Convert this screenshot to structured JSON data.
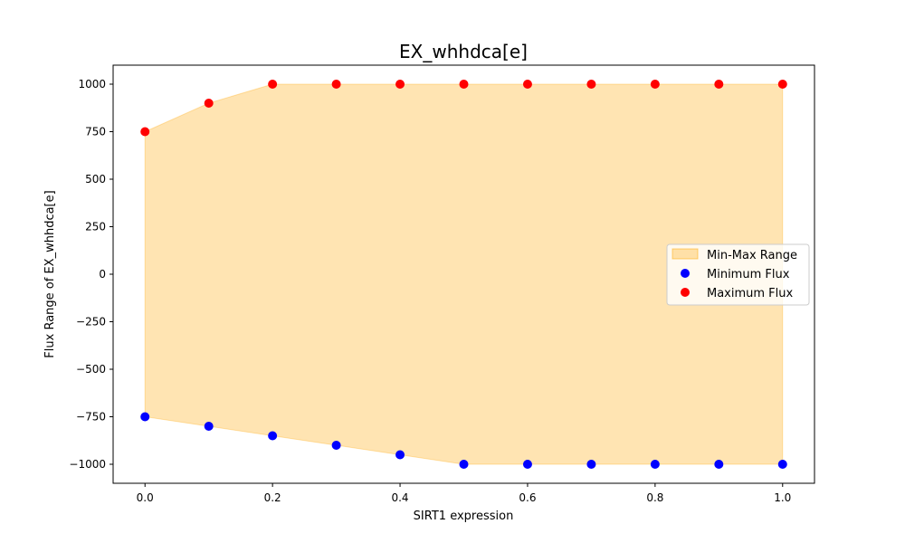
{
  "chart_data": {
    "type": "scatter",
    "title": "EX_whhdca[e]",
    "xlabel": "SIRT1 expression",
    "ylabel": "Flux Range of EX_whhdca[e]",
    "xlim": [
      -0.05,
      1.05
    ],
    "ylim": [
      -1100,
      1100
    ],
    "x_ticks": [
      0.0,
      0.2,
      0.4,
      0.6,
      0.8,
      1.0
    ],
    "x_tick_labels": [
      "0.0",
      "0.2",
      "0.4",
      "0.6",
      "0.8",
      "1.0"
    ],
    "y_ticks": [
      -1000,
      -750,
      -500,
      -250,
      0,
      250,
      500,
      750,
      1000
    ],
    "y_tick_labels": [
      "−1000",
      "−750",
      "−500",
      "−250",
      "0",
      "250",
      "500",
      "750",
      "1000"
    ],
    "x": [
      0.0,
      0.1,
      0.2,
      0.3,
      0.4,
      0.5,
      0.6,
      0.7,
      0.8,
      0.9,
      1.0
    ],
    "series": [
      {
        "name": "Minimum Flux",
        "values": [
          -750,
          -800,
          -850,
          -900,
          -950,
          -1000,
          -1000,
          -1000,
          -1000,
          -1000,
          -1000
        ],
        "color": "#0000ff"
      },
      {
        "name": "Maximum Flux",
        "values": [
          750,
          900,
          1000,
          1000,
          1000,
          1000,
          1000,
          1000,
          1000,
          1000,
          1000
        ],
        "color": "#ff0000"
      }
    ],
    "fill": {
      "name": "Min-Max Range",
      "color": "#ffa500",
      "alpha": 0.3
    },
    "legend": {
      "position": "center-right",
      "entries": [
        "Min-Max Range",
        "Minimum Flux",
        "Maximum Flux"
      ]
    },
    "grid": false
  }
}
